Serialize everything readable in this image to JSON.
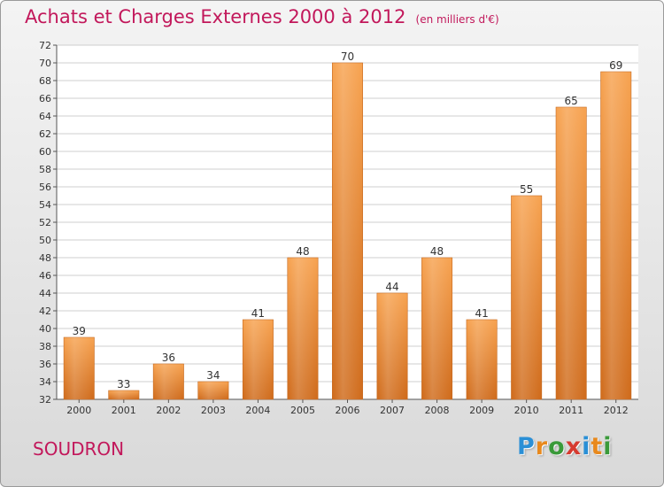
{
  "header": {
    "title": "Achats et Charges Externes 2000 à 2012",
    "unit": "(en milliers d'€)"
  },
  "commune": "SOUDRON",
  "logo": {
    "letters": [
      "P",
      "r",
      "o",
      "x",
      "i",
      "t",
      "i"
    ],
    "colors": [
      "#2a8fd6",
      "#e8891d",
      "#3a9a3a",
      "#d63a2f",
      "#2a8fd6",
      "#e8891d",
      "#3a9a3a"
    ]
  },
  "chart_data": {
    "type": "bar",
    "categories": [
      "2000",
      "2001",
      "2002",
      "2003",
      "2004",
      "2005",
      "2006",
      "2007",
      "2008",
      "2009",
      "2010",
      "2011",
      "2012"
    ],
    "values": [
      39,
      33,
      36,
      34,
      41,
      48,
      70,
      44,
      48,
      41,
      55,
      65,
      69
    ],
    "ylim": [
      32,
      72
    ],
    "yticks": [
      32,
      34,
      36,
      38,
      40,
      42,
      44,
      46,
      48,
      50,
      52,
      54,
      56,
      58,
      60,
      62,
      64,
      66,
      68,
      70,
      72
    ],
    "grid": true,
    "bar_color": "#f0913a"
  }
}
